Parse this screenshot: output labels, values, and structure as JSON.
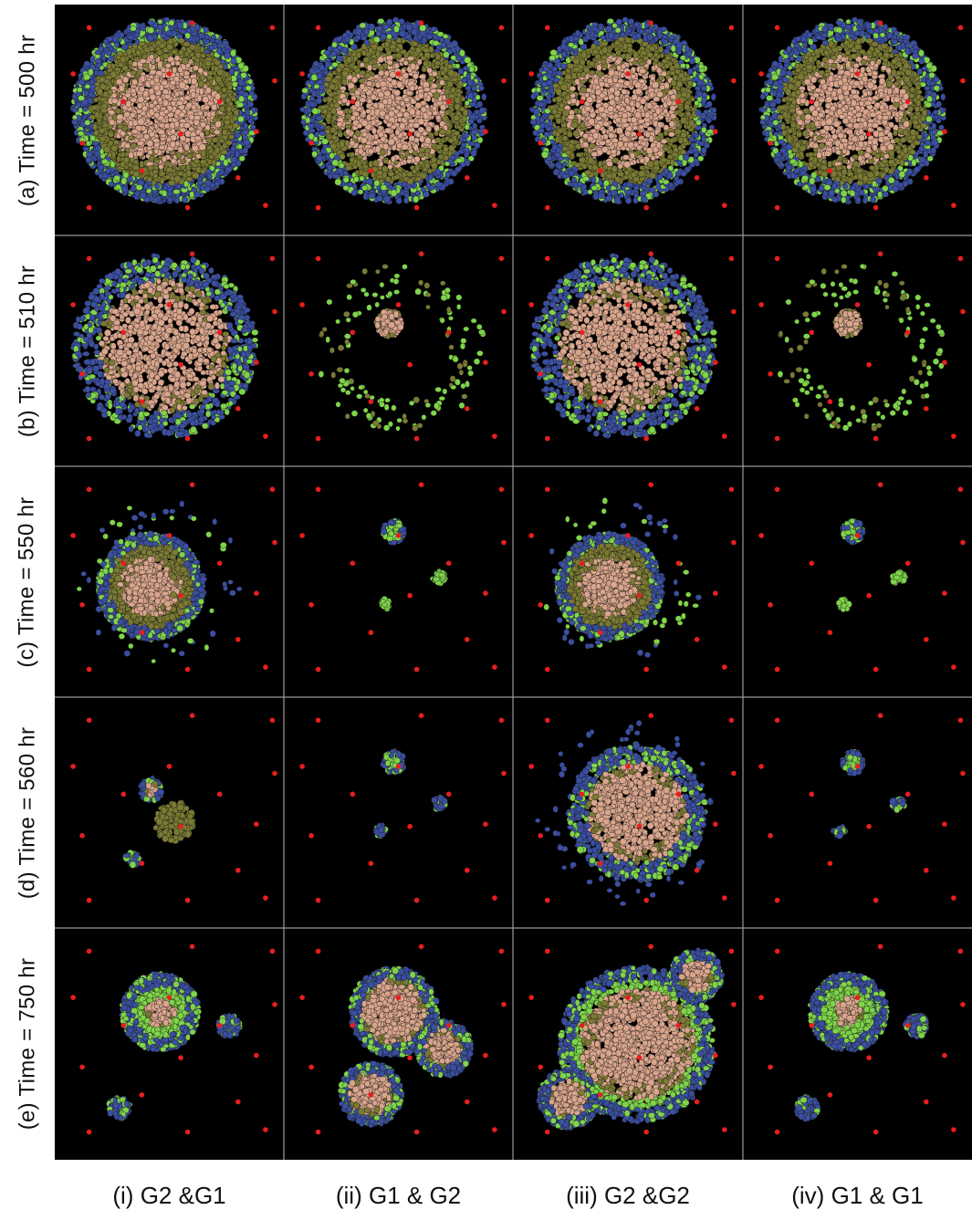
{
  "rows": [
    {
      "label": "(a) Time = 500 hr"
    },
    {
      "label": "(b) Time = 510 hr"
    },
    {
      "label": "(c) Time = 550 hr"
    },
    {
      "label": "(d) Time = 560 hr"
    },
    {
      "label": "(e) Time = 750 hr"
    }
  ],
  "columns": [
    {
      "label": "(i) G2 &G1"
    },
    {
      "label": "(ii) G1 & G2"
    },
    {
      "label": "(iii) G2 &G2"
    },
    {
      "label": "(iv) G1 & G1"
    }
  ],
  "colors": {
    "background": "#000000",
    "divider": "#9a9a9a",
    "necrotic_core": "#d9a58c",
    "quiescent": "#7b7a34",
    "proliferating_g1": "#3b4fa0",
    "proliferating_g2": "#7fd44a",
    "vessel": "#e81e1e"
  }
}
